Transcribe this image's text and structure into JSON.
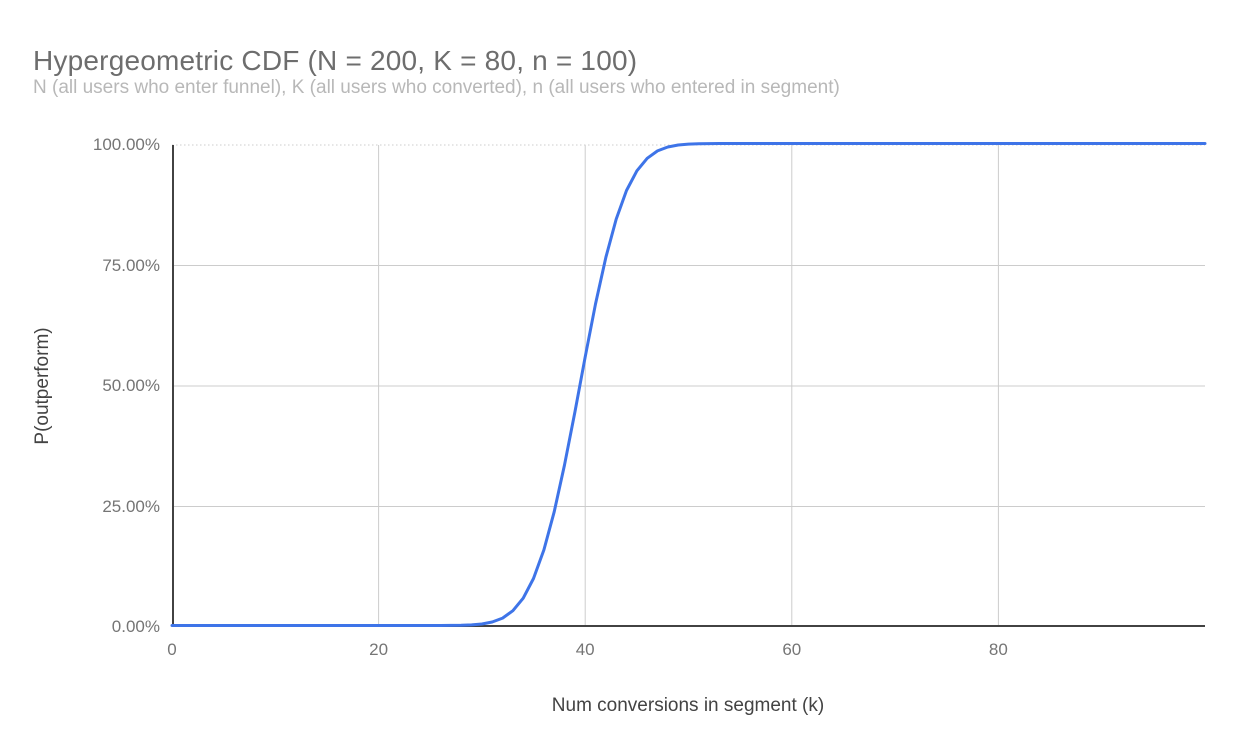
{
  "chart": {
    "title": "Hypergeometric CDF (N = 200, K = 80, n = 100)",
    "subtitle": "N (all users who enter funnel), K (all users who converted), n (all users who entered in segment)"
  },
  "chart_data": {
    "type": "line",
    "title": "Hypergeometric CDF (N = 200, K = 80, n = 100)",
    "subtitle": "N (all users who enter funnel), K (all users who converted), n (all users who entered in segment)",
    "xlabel": "Num conversions in segment (k)",
    "ylabel": "P(outperform)",
    "xlim": [
      0,
      100
    ],
    "ylim": [
      0,
      1
    ],
    "x_ticks": [
      0,
      20,
      40,
      60,
      80
    ],
    "y_ticks": [
      0,
      0.25,
      0.5,
      0.75,
      1
    ],
    "x_tick_labels": [
      "0",
      "20",
      "40",
      "60",
      "80"
    ],
    "y_tick_labels": [
      "0.00%",
      "25.00%",
      "50.00%",
      "75.00%",
      "100.00%"
    ],
    "grid": true,
    "legend": "none",
    "params": {
      "N": 200,
      "K": 80,
      "n": 100
    },
    "colors": {
      "line": "#3e74e8",
      "gridline": "#cccccc",
      "axis": "#424242",
      "title_text": "#6d6d6d",
      "subtitle_text": "#b8b8b8",
      "tick_text": "#757575",
      "axis_title_text": "#434343"
    },
    "series": [
      {
        "name": "P(outperform)",
        "points": [
          [
            0,
            0
          ],
          [
            5,
            0
          ],
          [
            10,
            0
          ],
          [
            15,
            0
          ],
          [
            20,
            0
          ],
          [
            22,
            0
          ],
          [
            24,
            0
          ],
          [
            25,
            0
          ],
          [
            26,
            0.0001
          ],
          [
            27,
            0.0002
          ],
          [
            28,
            0.0005
          ],
          [
            29,
            0.0013
          ],
          [
            30,
            0.0031
          ],
          [
            31,
            0.0072
          ],
          [
            32,
            0.0154
          ],
          [
            33,
            0.0307
          ],
          [
            34,
            0.0567
          ],
          [
            35,
            0.0975
          ],
          [
            36,
            0.1568
          ],
          [
            37,
            0.2358
          ],
          [
            38,
            0.3329
          ],
          [
            39,
            0.4428
          ],
          [
            40,
            0.5572
          ],
          [
            41,
            0.6671
          ],
          [
            42,
            0.7642
          ],
          [
            43,
            0.8432
          ],
          [
            44,
            0.9025
          ],
          [
            45,
            0.9433
          ],
          [
            46,
            0.9693
          ],
          [
            47,
            0.9846
          ],
          [
            48,
            0.9928
          ],
          [
            49,
            0.9969
          ],
          [
            50,
            0.9987
          ],
          [
            51,
            0.9995
          ],
          [
            52,
            0.9998
          ],
          [
            53,
            0.9999
          ],
          [
            54,
            1
          ],
          [
            55,
            1
          ],
          [
            60,
            1
          ],
          [
            65,
            1
          ],
          [
            70,
            1
          ],
          [
            75,
            1
          ],
          [
            80,
            1
          ],
          [
            85,
            1
          ],
          [
            90,
            1
          ],
          [
            95,
            1
          ],
          [
            100,
            1
          ]
        ]
      }
    ]
  }
}
